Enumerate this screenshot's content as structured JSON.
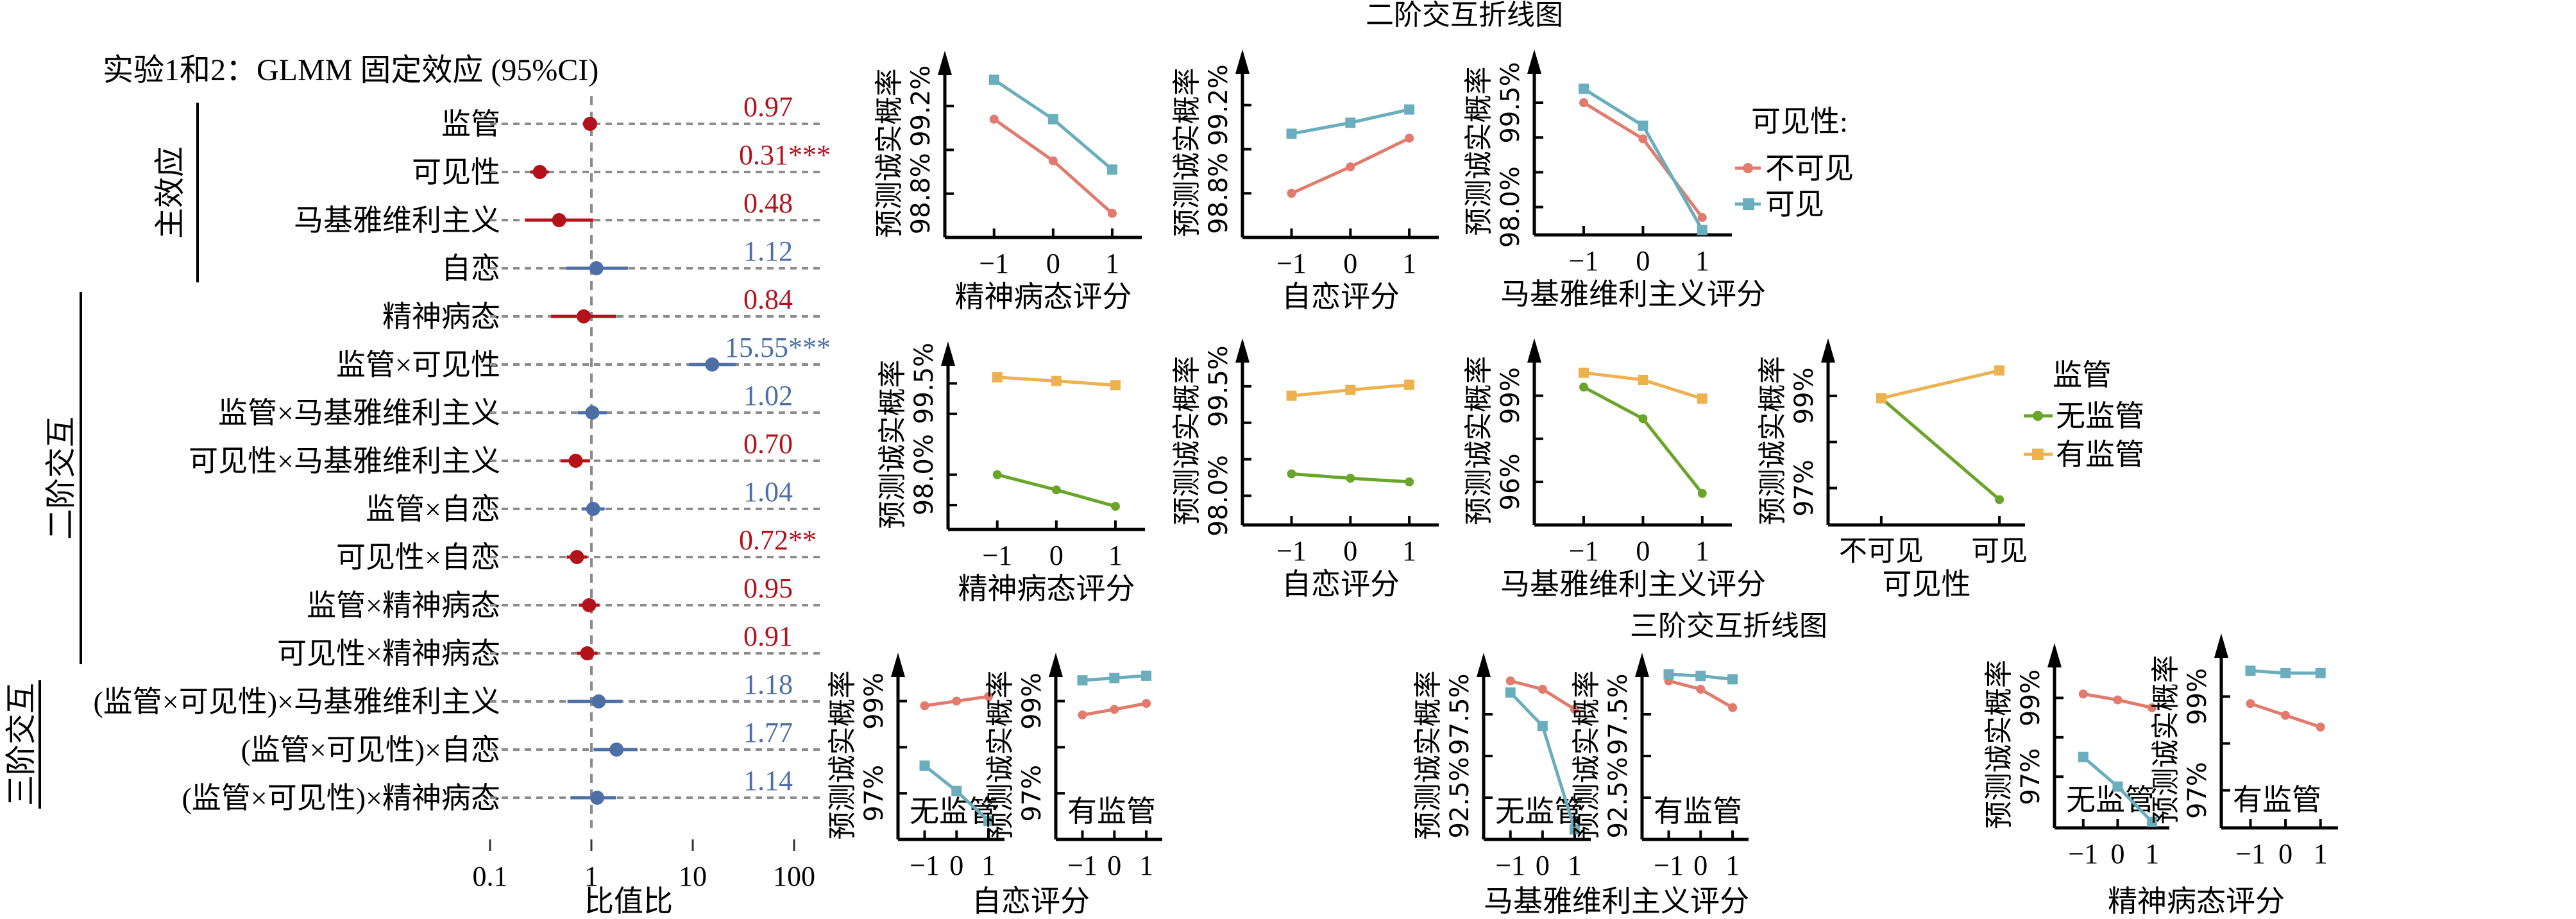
{
  "colors": {
    "sig_low": "#b3121a",
    "sig_high": "#4e6fa5",
    "grid": "#8c8c8c",
    "invisible": "#e07b6e",
    "visible": "#6aaebd",
    "no_supervision": "#6aa52a",
    "supervision": "#ecb24f"
  },
  "forest": {
    "title": "实验1和2：GLMM 固定效应 (95%CI)",
    "xlabel": "比值比",
    "groups": [
      {
        "label": "主效应",
        "rows": [
          0,
          4
        ]
      },
      {
        "label": "二阶交互",
        "rows": [
          5,
          11
        ]
      },
      {
        "label": "三阶交互",
        "rows": [
          12,
          14
        ]
      }
    ]
  },
  "panels_titles": {
    "second_order": "二阶交互折线图",
    "third_order": "三阶交互折线图"
  },
  "chart_data": [
    {
      "type": "forest",
      "title": "实验1和2：GLMM 固定效应 (95%CI)",
      "xlabel": "比值比",
      "xscale": "log",
      "xlim": [
        0.1,
        100
      ],
      "xticks": [
        "0.1",
        "1",
        "10",
        "100"
      ],
      "reference_line": 1,
      "rows": [
        {
          "label": "监管",
          "or": 0.97,
          "ci": [
            0.85,
            1.12
          ],
          "text": "0.97",
          "sig": ""
        },
        {
          "label": "可见性",
          "or": 0.31,
          "ci": [
            0.25,
            0.38
          ],
          "text": "0.31",
          "sig": "***"
        },
        {
          "label": "马基雅维利主义",
          "or": 0.48,
          "ci": [
            0.22,
            1.05
          ],
          "text": "0.48",
          "sig": ""
        },
        {
          "label": "自恋",
          "or": 1.12,
          "ci": [
            0.56,
            2.3
          ],
          "text": "1.12",
          "sig": ""
        },
        {
          "label": "精神病态",
          "or": 0.84,
          "ci": [
            0.4,
            1.77
          ],
          "text": "0.84",
          "sig": ""
        },
        {
          "label": "监管×可见性",
          "or": 15.55,
          "ci": [
            9.2,
            26.5
          ],
          "text": "15.55",
          "sig": "***"
        },
        {
          "label": "监管×马基雅维利主义",
          "or": 1.02,
          "ci": [
            0.73,
            1.42
          ],
          "text": "1.02",
          "sig": ""
        },
        {
          "label": "可见性×马基雅维利主义",
          "or": 0.7,
          "ci": [
            0.5,
            0.97
          ],
          "text": "0.70",
          "sig": ""
        },
        {
          "label": "监管×自恋",
          "or": 1.04,
          "ci": [
            0.8,
            1.35
          ],
          "text": "1.04",
          "sig": ""
        },
        {
          "label": "可见性×自恋",
          "or": 0.72,
          "ci": [
            0.57,
            0.91
          ],
          "text": "0.72",
          "sig": "**"
        },
        {
          "label": "监管×精神病态",
          "or": 0.95,
          "ci": [
            0.75,
            1.2
          ],
          "text": "0.95",
          "sig": ""
        },
        {
          "label": "可见性×精神病态",
          "or": 0.91,
          "ci": [
            0.72,
            1.15
          ],
          "text": "0.91",
          "sig": ""
        },
        {
          "label": "(监管×可见性)×马基雅维利主义",
          "or": 1.18,
          "ci": [
            0.58,
            2.0
          ],
          "text": "1.18",
          "sig": ""
        },
        {
          "label": "(监管×可见性)×自恋",
          "or": 1.77,
          "ci": [
            1.05,
            2.85
          ],
          "text": "1.77",
          "sig": ""
        },
        {
          "label": "(监管×可见性)×精神病态",
          "or": 1.14,
          "ci": [
            0.62,
            1.75
          ],
          "text": "1.14",
          "sig": ""
        }
      ]
    },
    {
      "type": "line",
      "id": "p1",
      "xlabel": "精神病态评分",
      "ylabel": "预测诚实概率",
      "x": [
        -1,
        0,
        1
      ],
      "xticks": [
        "−1",
        "0",
        "1"
      ],
      "ylim": [
        98.6,
        99.4
      ],
      "yticks": [
        98.8,
        99.0,
        99.2
      ],
      "ytick_labels": [
        "98.8%",
        "",
        "99.2%"
      ],
      "series": [
        {
          "name": "不可见",
          "color_key": "invisible",
          "marker": "circle",
          "values": [
            99.14,
            98.95,
            98.71
          ]
        },
        {
          "name": "可见",
          "color_key": "visible",
          "marker": "square",
          "values": [
            99.32,
            99.14,
            98.91
          ]
        }
      ]
    },
    {
      "type": "line",
      "id": "p2",
      "xlabel": "自恋评分",
      "ylabel": "预测诚实概率",
      "x": [
        -1,
        0,
        1
      ],
      "xticks": [
        "−1",
        "0",
        "1"
      ],
      "ylim": [
        98.6,
        99.4
      ],
      "yticks": [
        98.8,
        99.0,
        99.2
      ],
      "ytick_labels": [
        "98.8%",
        "",
        "99.2%"
      ],
      "series": [
        {
          "name": "不可见",
          "color_key": "invisible",
          "marker": "circle",
          "values": [
            98.8,
            98.92,
            99.05
          ]
        },
        {
          "name": "可见",
          "color_key": "visible",
          "marker": "square",
          "values": [
            99.07,
            99.12,
            99.18
          ]
        }
      ]
    },
    {
      "type": "line",
      "id": "p3",
      "xlabel": "马基雅维利主义评分",
      "ylabel": "预测诚实概率",
      "x": [
        -1,
        0,
        1
      ],
      "xticks": [
        "−1",
        "0",
        "1"
      ],
      "ylim": [
        97.6,
        100.1
      ],
      "yticks": [
        98.0,
        98.5,
        99.0,
        99.5
      ],
      "ytick_labels": [
        "98.0%",
        "",
        "",
        "99.5%"
      ],
      "legend": {
        "title": "可见性:",
        "position": "right"
      },
      "series": [
        {
          "name": "不可见",
          "color_key": "invisible",
          "marker": "circle",
          "values": [
            99.5,
            98.98,
            97.85
          ]
        },
        {
          "name": "可见",
          "color_key": "visible",
          "marker": "square",
          "values": [
            99.7,
            99.17,
            97.67
          ]
        }
      ]
    },
    {
      "type": "line",
      "id": "p4",
      "xlabel": "精神病态评分",
      "ylabel": "预测诚实概率",
      "x": [
        -1,
        0,
        1
      ],
      "xticks": [
        "−1",
        "0",
        "1"
      ],
      "ylim": [
        97.1,
        100.0
      ],
      "yticks": [
        97.5,
        98.0,
        99.0,
        99.5
      ],
      "ytick_labels": [
        "",
        "98.0%",
        "",
        "99.5%"
      ],
      "series": [
        {
          "name": "无监管",
          "color_key": "no_supervision",
          "marker": "circle",
          "values": [
            98.0,
            97.75,
            97.48
          ]
        },
        {
          "name": "有监管",
          "color_key": "supervision",
          "marker": "square",
          "values": [
            99.6,
            99.54,
            99.47
          ]
        }
      ]
    },
    {
      "type": "line",
      "id": "p5",
      "xlabel": "自恋评分",
      "ylabel": "预测诚实概率",
      "x": [
        -1,
        0,
        1
      ],
      "xticks": [
        "−1",
        "0",
        "1"
      ],
      "ylim": [
        97.6,
        100.0
      ],
      "yticks": [
        98.0,
        98.5,
        99.0,
        99.5
      ],
      "ytick_labels": [
        "98.0%",
        "",
        "",
        "99.5%"
      ],
      "series": [
        {
          "name": "无监管",
          "color_key": "no_supervision",
          "marker": "circle",
          "values": [
            98.3,
            98.24,
            98.19
          ]
        },
        {
          "name": "有监管",
          "color_key": "supervision",
          "marker": "square",
          "values": [
            99.37,
            99.45,
            99.52
          ]
        }
      ]
    },
    {
      "type": "line",
      "id": "p6",
      "xlabel": "马基雅维利主义评分",
      "ylabel": "预测诚实概率",
      "x": [
        -1,
        0,
        1
      ],
      "xticks": [
        "−1",
        "0",
        "1"
      ],
      "ylim": [
        94.5,
        100.6
      ],
      "yticks": [
        96,
        97.5,
        99
      ],
      "ytick_labels": [
        "96%",
        "",
        "99%"
      ],
      "series": [
        {
          "name": "无监管",
          "color_key": "no_supervision",
          "marker": "circle",
          "values": [
            99.3,
            98.2,
            95.6
          ]
        },
        {
          "name": "有监管",
          "color_key": "supervision",
          "marker": "square",
          "values": [
            99.8,
            99.55,
            98.9
          ]
        }
      ]
    },
    {
      "type": "line",
      "id": "p7",
      "xlabel": "可见性",
      "ylabel": "预测诚实概率",
      "x": [
        0,
        1
      ],
      "xticks": [
        "不可见",
        "可见"
      ],
      "ylim": [
        96.2,
        100.0
      ],
      "yticks": [
        97,
        98,
        99
      ],
      "ytick_labels": [
        "97%",
        "",
        "99%"
      ],
      "legend": {
        "title": "监管",
        "position": "right"
      },
      "series": [
        {
          "name": "无监管",
          "color_key": "no_supervision",
          "marker": "circle",
          "values": [
            98.95,
            96.75
          ]
        },
        {
          "name": "有监管",
          "color_key": "supervision",
          "marker": "square",
          "values": [
            98.95,
            99.55
          ]
        }
      ]
    },
    {
      "type": "line",
      "id": "p8",
      "xlabel": "自恋评分",
      "ylabel": "预测诚实概率",
      "annotation": "无监管",
      "x": [
        -1,
        0,
        1
      ],
      "xticks": [
        "−1",
        "0",
        "1"
      ],
      "ylim": [
        96.0,
        99.8
      ],
      "yticks": [
        97,
        98,
        99
      ],
      "ytick_labels": [
        "97%",
        "",
        "99%"
      ],
      "series": [
        {
          "name": "不可见",
          "color_key": "invisible",
          "marker": "circle",
          "values": [
            98.9,
            99.0,
            99.1
          ]
        },
        {
          "name": "可见",
          "color_key": "visible",
          "marker": "square",
          "values": [
            97.6,
            97.05,
            96.4
          ]
        }
      ]
    },
    {
      "type": "line",
      "id": "p9",
      "xlabel": "",
      "ylabel": "预测诚实概率",
      "annotation": "有监管",
      "x": [
        -1,
        0,
        1
      ],
      "xticks": [
        "−1",
        "0",
        "1"
      ],
      "ylim": [
        96.0,
        99.8
      ],
      "yticks": [
        97,
        98,
        99
      ],
      "ytick_labels": [
        "97%",
        "",
        "99%"
      ],
      "series": [
        {
          "name": "不可见",
          "color_key": "invisible",
          "marker": "circle",
          "values": [
            98.7,
            98.82,
            98.95
          ]
        },
        {
          "name": "可见",
          "color_key": "visible",
          "marker": "square",
          "values": [
            99.45,
            99.5,
            99.55
          ]
        }
      ]
    },
    {
      "type": "line",
      "id": "p10",
      "xlabel": "马基雅维利主义评分",
      "ylabel": "预测诚实概率",
      "annotation": "无监管",
      "x": [
        -1,
        0,
        1
      ],
      "xticks": [
        "−1",
        "0",
        "1"
      ],
      "ylim": [
        90.0,
        100.5
      ],
      "yticks": [
        92.5,
        95.0,
        97.5
      ],
      "ytick_labels": [
        "92.5%",
        "",
        "97.5%"
      ],
      "series": [
        {
          "name": "不可见",
          "color_key": "invisible",
          "marker": "circle",
          "values": [
            99.5,
            99.0,
            97.8
          ]
        },
        {
          "name": "可见",
          "color_key": "visible",
          "marker": "square",
          "values": [
            98.8,
            96.8,
            90.6
          ]
        }
      ]
    },
    {
      "type": "line",
      "id": "p11",
      "xlabel": "",
      "ylabel": "预测诚实概率",
      "annotation": "有监管",
      "x": [
        -1,
        0,
        1
      ],
      "xticks": [
        "−1",
        "0",
        "1"
      ],
      "ylim": [
        90.0,
        100.5
      ],
      "yticks": [
        92.5,
        95.0,
        97.5
      ],
      "ytick_labels": [
        "92.5%",
        "",
        "97.5%"
      ],
      "series": [
        {
          "name": "不可见",
          "color_key": "invisible",
          "marker": "circle",
          "values": [
            99.5,
            99.0,
            97.9
          ]
        },
        {
          "name": "可见",
          "color_key": "visible",
          "marker": "square",
          "values": [
            99.9,
            99.8,
            99.6
          ]
        }
      ]
    },
    {
      "type": "line",
      "id": "p12",
      "xlabel": "精神病态评分",
      "ylabel": "预测诚实概率",
      "annotation": "无监管",
      "x": [
        -1,
        0,
        1
      ],
      "xticks": [
        "−1",
        "0",
        "1"
      ],
      "ylim": [
        95.7,
        100.1
      ],
      "yticks": [
        97,
        98,
        99
      ],
      "ytick_labels": [
        "97%",
        "",
        "99%"
      ],
      "series": [
        {
          "name": "不可见",
          "color_key": "invisible",
          "marker": "circle",
          "values": [
            99.1,
            98.95,
            98.75
          ]
        },
        {
          "name": "可见",
          "color_key": "visible",
          "marker": "square",
          "values": [
            97.5,
            96.75,
            95.85
          ]
        }
      ]
    },
    {
      "type": "line",
      "id": "p13",
      "xlabel": "",
      "ylabel": "预测诚实概率",
      "annotation": "有监管",
      "x": [
        -1,
        0,
        1
      ],
      "xticks": [
        "−1",
        "0",
        "1"
      ],
      "ylim": [
        96.2,
        100.1
      ],
      "yticks": [
        97,
        98,
        99
      ],
      "ytick_labels": [
        "97%",
        "",
        "99%"
      ],
      "series": [
        {
          "name": "不可见",
          "color_key": "invisible",
          "marker": "circle",
          "values": [
            98.85,
            98.6,
            98.35
          ]
        },
        {
          "name": "可见",
          "color_key": "visible",
          "marker": "square",
          "values": [
            99.55,
            99.5,
            99.5
          ]
        }
      ]
    }
  ],
  "legends": {
    "visibility": {
      "title": "可见性:",
      "items": [
        "不可见",
        "可见"
      ]
    },
    "supervision": {
      "title": "监管",
      "items": [
        "无监管",
        "有监管"
      ]
    }
  }
}
